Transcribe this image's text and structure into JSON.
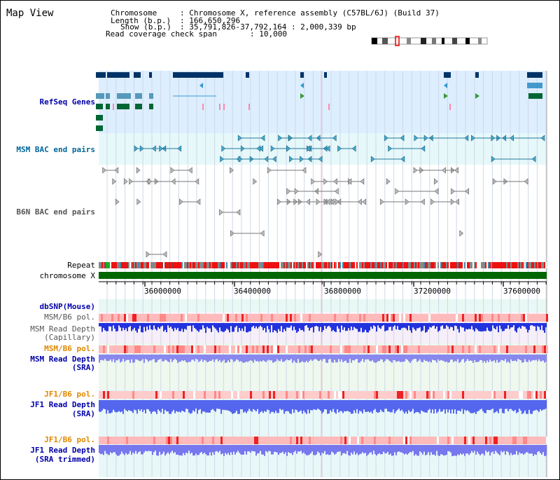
{
  "title": "Map View",
  "header": {
    "chromosome_label": "Chromosome",
    "chromosome_value": ": Chromosome X, reference assembly (C57BL/6J) (Build 37)",
    "length_label": "Length (b.p.)",
    "length_value": ": 166,650,296",
    "show_label": "Show (b.p.)",
    "show_value": ": 35,791,826-37,792,164 : 2,000,339 bp",
    "span_label": "Read coverage check span",
    "span_value": ": 10,000"
  },
  "tracks": {
    "refseq": "RefSeq Genes",
    "msm_bac": "MSM BAC end pairs",
    "b6n_bac": "B6N BAC end pairs",
    "repeat": "Repeat",
    "chromosome": "chromosome X",
    "dbsnp": "dbSNP(Mouse)",
    "msm_b6_pol_1": "MSM/B6 pol.",
    "msm_depth_cap_1": "MSM Read Depth",
    "msm_depth_cap_2": "(Capillary)",
    "msm_b6_pol_2": "MSM/B6 pol.",
    "msm_depth_sra_1": "MSM Read Depth",
    "msm_depth_sra_2": "(SRA)",
    "jf1_b6_pol_1": "JF1/B6 pol.",
    "jf1_depth_sra_1": "JF1 Read Depth",
    "jf1_depth_sra_2": "(SRA)",
    "jf1_b6_pol_2": "JF1/B6 pol.",
    "jf1_depth_trim_1": "JF1 Read Depth",
    "jf1_depth_trim_2": "(SRA trimmed)"
  },
  "axis": {
    "ticks": [
      "36000000",
      "36400000",
      "36800000",
      "37200000",
      "37600000"
    ]
  },
  "colors": {
    "refseq_label": "#0000aa",
    "msm_bac_label": "#006699",
    "orange_label": "#e08800",
    "blue_label": "#0000aa",
    "gray_label": "#555555",
    "refseq_bg": "#ddeeff",
    "msm_bac_bg": "#e6f8fa",
    "chrom_bar": "#006600"
  }
}
